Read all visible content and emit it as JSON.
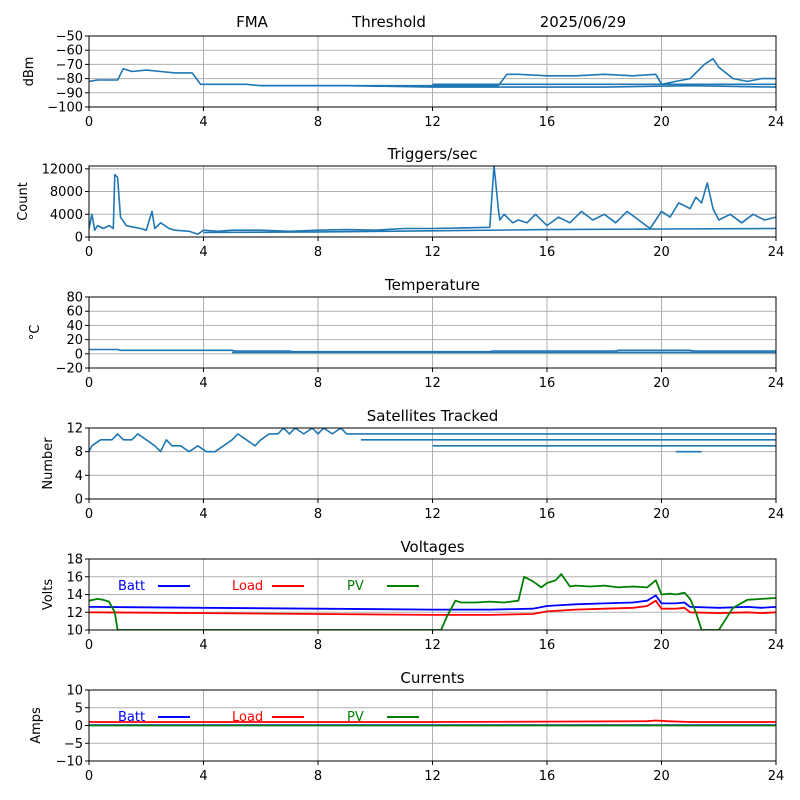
{
  "header": {
    "site": "FMA",
    "mode": "Threshold",
    "date": "2025/06/29"
  },
  "colors": {
    "series_default": "#1f77b4",
    "batt": "#0000ff",
    "load": "#ff0000",
    "pv": "#008000",
    "grid": "#b0b0b0"
  },
  "chart_data": [
    {
      "id": "threshold",
      "type": "line",
      "title": "",
      "xlabel": "",
      "ylabel": "dBm",
      "xlim": [
        0,
        24
      ],
      "ylim": [
        -100,
        -50
      ],
      "xticks": [
        0,
        4,
        8,
        12,
        16,
        20,
        24
      ],
      "yticks": [
        -100,
        -90,
        -80,
        -70,
        -60,
        -50
      ],
      "grid": true,
      "series": [
        {
          "color": "#1f77b4",
          "x": [
            0,
            0.3,
            1.0,
            1.2,
            1.5,
            2.0,
            2.5,
            3.0,
            3.6,
            3.9,
            4.5,
            5.0,
            5.5,
            6.0,
            7.0,
            8.0,
            9.0,
            10.0,
            11.0,
            12.0,
            13.0,
            14.0,
            14.3,
            14.6,
            15.0,
            16.0,
            17.0,
            18.0,
            19.0,
            19.8,
            20.0,
            20.5,
            21.0,
            21.5,
            21.8,
            22.0,
            22.5,
            23.0,
            23.5,
            24.0
          ],
          "y": [
            -82,
            -81,
            -81,
            -73,
            -75,
            -74,
            -75,
            -76,
            -76,
            -84,
            -84,
            -84,
            -84,
            -85,
            -85,
            -85,
            -85,
            -85,
            -85,
            -85,
            -85,
            -85,
            -85,
            -77,
            -77,
            -78,
            -78,
            -77,
            -78,
            -77,
            -84,
            -82,
            -80,
            -70,
            -66,
            -72,
            -80,
            -82,
            -80,
            -80
          ]
        },
        {
          "color": "#1f77b4",
          "x": [
            6.0,
            9.0,
            12.0,
            15.0,
            18.0,
            21.0,
            24.0
          ],
          "y": [
            -85,
            -85,
            -86,
            -86,
            -86,
            -85,
            -86
          ]
        },
        {
          "color": "#1f77b4",
          "x": [
            12.0,
            15.0,
            18.0,
            21.0,
            24.0
          ],
          "y": [
            -84,
            -84,
            -84,
            -84,
            -84
          ]
        }
      ]
    },
    {
      "id": "triggers",
      "type": "line",
      "title": "Triggers/sec",
      "xlabel": "",
      "ylabel": "Count",
      "xlim": [
        0,
        24
      ],
      "ylim": [
        0,
        12500
      ],
      "xticks": [
        0,
        4,
        8,
        12,
        16,
        20,
        24
      ],
      "yticks": [
        0,
        4000,
        8000,
        12000
      ],
      "grid": true,
      "series": [
        {
          "color": "#1f77b4",
          "x": [
            0,
            0.1,
            0.2,
            0.3,
            0.5,
            0.7,
            0.85,
            0.9,
            1.0,
            1.1,
            1.3,
            1.5,
            1.8,
            2.0,
            2.2,
            2.3,
            2.5,
            2.8,
            3.0,
            3.5,
            3.8,
            4.0,
            4.5,
            5.0,
            6.0,
            7.0,
            8.0,
            9.0,
            10.0,
            11.0,
            12.0,
            13.0,
            14.0,
            14.1,
            14.15,
            14.2,
            14.3,
            14.35,
            14.5,
            14.8,
            15.0,
            15.3,
            15.6,
            16.0,
            16.4,
            16.8,
            17.2,
            17.6,
            18.0,
            18.4,
            18.8,
            19.2,
            19.6,
            20.0,
            20.3,
            20.6,
            21.0,
            21.2,
            21.4,
            21.6,
            21.8,
            22.0,
            22.4,
            22.8,
            23.2,
            23.6,
            24.0
          ],
          "y": [
            1500,
            4000,
            1200,
            2000,
            1500,
            2000,
            1500,
            11000,
            10500,
            3500,
            2000,
            1800,
            1500,
            1200,
            4500,
            1500,
            2500,
            1500,
            1200,
            1000,
            500,
            1200,
            1000,
            1200,
            1200,
            1000,
            1200,
            1300,
            1200,
            1500,
            1500,
            1600,
            1700,
            9000,
            12500,
            10000,
            5000,
            3000,
            4000,
            2500,
            3000,
            2500,
            4000,
            2000,
            3500,
            2500,
            4500,
            3000,
            4000,
            2500,
            4500,
            3000,
            1500,
            4500,
            3500,
            6000,
            5000,
            7000,
            6000,
            9500,
            5000,
            3000,
            4000,
            2500,
            4000,
            3000,
            3500
          ]
        },
        {
          "color": "#1f77b4",
          "x": [
            4.0,
            8.0,
            12.0,
            16.0,
            20.0,
            24.0
          ],
          "y": [
            800,
            900,
            1100,
            1300,
            1400,
            1500
          ]
        }
      ]
    },
    {
      "id": "temperature",
      "type": "line",
      "title": "Temperature",
      "xlabel": "",
      "ylabel": "°C",
      "xlim": [
        0,
        24
      ],
      "ylim": [
        -20,
        80
      ],
      "xticks": [
        0,
        4,
        8,
        12,
        16,
        20,
        24
      ],
      "yticks": [
        -20,
        0,
        20,
        40,
        60,
        80
      ],
      "grid": true,
      "series": [
        {
          "color": "#1f77b4",
          "x": [
            0,
            1.0,
            1.1,
            5.0,
            5.1,
            7.0,
            7.1,
            14.0,
            14.1,
            18.4,
            18.5,
            21.0,
            21.1,
            24.0
          ],
          "y": [
            6,
            6,
            5,
            5,
            4,
            4,
            3,
            3,
            4,
            4,
            5,
            5,
            4,
            4
          ]
        },
        {
          "color": "#1f77b4",
          "x": [
            5.0,
            12.0,
            24.0
          ],
          "y": [
            2,
            2,
            2
          ]
        }
      ]
    },
    {
      "id": "satellites",
      "type": "line",
      "title": "Satellites Tracked",
      "xlabel": "",
      "ylabel": "Number",
      "xlim": [
        0,
        24
      ],
      "ylim": [
        0,
        12
      ],
      "xticks": [
        0,
        4,
        8,
        12,
        16,
        20,
        24
      ],
      "yticks": [
        0,
        4,
        8,
        12
      ],
      "grid": true,
      "series": [
        {
          "color": "#1f77b4",
          "x": [
            0,
            0.1,
            0.4,
            0.8,
            1.0,
            1.2,
            1.5,
            1.7,
            2.0,
            2.3,
            2.5,
            2.7,
            2.9,
            3.2,
            3.5,
            3.8,
            4.1,
            4.4,
            4.7,
            5.0,
            5.2,
            5.5,
            5.8,
            6.0,
            6.3,
            6.6,
            6.8,
            7.0,
            7.2,
            7.5,
            7.8,
            8.0,
            8.2,
            8.5,
            8.8,
            9.0,
            9.5,
            10.0,
            12.0,
            14.0,
            16.0,
            18.0,
            20.0,
            22.0,
            24.0
          ],
          "y": [
            8,
            9,
            10,
            10,
            11,
            10,
            10,
            11,
            10,
            9,
            8,
            10,
            9,
            9,
            8,
            9,
            8,
            8,
            9,
            10,
            11,
            10,
            9,
            10,
            11,
            11,
            12,
            11,
            12,
            11,
            12,
            11,
            12,
            11,
            12,
            11,
            11,
            11,
            11,
            11,
            11,
            11,
            11,
            11,
            11
          ]
        },
        {
          "color": "#1f77b4",
          "x": [
            9.5,
            12.0,
            14.0,
            16.0,
            18.0,
            20.0,
            22.0,
            24.0
          ],
          "y": [
            10,
            10,
            10,
            10,
            10,
            10,
            10,
            10
          ]
        },
        {
          "color": "#1f77b4",
          "x": [
            12.0,
            14.0,
            16.0,
            18.0,
            20.0,
            22.0,
            24.0
          ],
          "y": [
            9,
            9,
            9,
            9,
            9,
            9,
            9
          ]
        },
        {
          "color": "#1f77b4",
          "x": [
            20.5,
            21.4
          ],
          "y": [
            8,
            8
          ]
        }
      ]
    },
    {
      "id": "voltages",
      "type": "line",
      "title": "Voltages",
      "xlabel": "",
      "ylabel": "Volts",
      "xlim": [
        0,
        24
      ],
      "ylim": [
        10,
        18
      ],
      "xticks": [
        0,
        4,
        8,
        12,
        16,
        20,
        24
      ],
      "yticks": [
        10,
        12,
        14,
        16,
        18
      ],
      "grid": true,
      "legend": "top-left-inline",
      "series": [
        {
          "name": "Batt",
          "color": "#0000ff",
          "x": [
            0,
            4,
            8,
            12,
            14,
            15.5,
            16,
            16.5,
            17,
            18,
            19,
            19.5,
            19.8,
            20,
            20.5,
            20.8,
            21,
            22,
            23,
            23.5,
            24
          ],
          "y": [
            12.6,
            12.5,
            12.4,
            12.3,
            12.3,
            12.4,
            12.7,
            12.8,
            12.9,
            13.0,
            13.1,
            13.3,
            13.9,
            13.0,
            13.0,
            13.1,
            12.6,
            12.5,
            12.6,
            12.5,
            12.6
          ]
        },
        {
          "name": "Load",
          "color": "#ff0000",
          "x": [
            0,
            4,
            8,
            12,
            14,
            15.5,
            16,
            16.5,
            17,
            18,
            19,
            19.5,
            19.8,
            20,
            20.5,
            20.8,
            21,
            22,
            23,
            23.5,
            24
          ],
          "y": [
            12.0,
            11.9,
            11.8,
            11.7,
            11.7,
            11.8,
            12.1,
            12.2,
            12.3,
            12.4,
            12.5,
            12.7,
            13.3,
            12.4,
            12.4,
            12.5,
            12.0,
            11.9,
            12.0,
            11.9,
            12.0
          ]
        },
        {
          "name": "PV",
          "color": "#008000",
          "x": [
            0,
            0.3,
            0.5,
            0.7,
            0.9,
            1.0,
            12.3,
            12.5,
            12.8,
            13.0,
            13.5,
            14.0,
            14.5,
            15.0,
            15.2,
            15.5,
            15.8,
            16.0,
            16.3,
            16.5,
            16.8,
            17.0,
            17.5,
            18.0,
            18.5,
            19.0,
            19.5,
            19.8,
            20.0,
            20.3,
            20.5,
            20.8,
            21.0,
            21.2,
            21.4,
            22.0,
            22.3,
            22.5,
            23.0,
            23.5,
            24.0
          ],
          "y": [
            13.3,
            13.5,
            13.4,
            13.2,
            12.0,
            10.0,
            10.0,
            11.5,
            13.3,
            13.1,
            13.1,
            13.2,
            13.1,
            13.3,
            16.0,
            15.5,
            14.8,
            15.3,
            15.6,
            16.3,
            14.9,
            15.0,
            14.9,
            15.0,
            14.8,
            14.9,
            14.8,
            15.6,
            14.0,
            14.1,
            14.0,
            14.2,
            13.5,
            12.0,
            10.0,
            10.0,
            11.5,
            12.5,
            13.4,
            13.5,
            13.6
          ]
        }
      ]
    },
    {
      "id": "currents",
      "type": "line",
      "title": "Currents",
      "xlabel": "",
      "ylabel": "Amps",
      "xlim": [
        0,
        24
      ],
      "ylim": [
        -10,
        10
      ],
      "xticks": [
        0,
        4,
        8,
        12,
        16,
        20,
        24
      ],
      "yticks": [
        -10,
        -5,
        0,
        5,
        10
      ],
      "grid": true,
      "legend": "top-left-inline",
      "series": [
        {
          "name": "Batt",
          "color": "#0000ff",
          "x": [
            0,
            24
          ],
          "y": [
            0.1,
            0.1
          ]
        },
        {
          "name": "Load",
          "color": "#ff0000",
          "x": [
            0,
            4,
            8,
            12,
            16,
            19.5,
            19.8,
            20.2,
            21,
            24
          ],
          "y": [
            1.0,
            1.0,
            1.0,
            1.0,
            1.1,
            1.2,
            1.4,
            1.2,
            1.0,
            1.0
          ]
        },
        {
          "name": "PV",
          "color": "#008000",
          "x": [
            0,
            24
          ],
          "y": [
            0.0,
            0.0
          ]
        }
      ]
    }
  ]
}
